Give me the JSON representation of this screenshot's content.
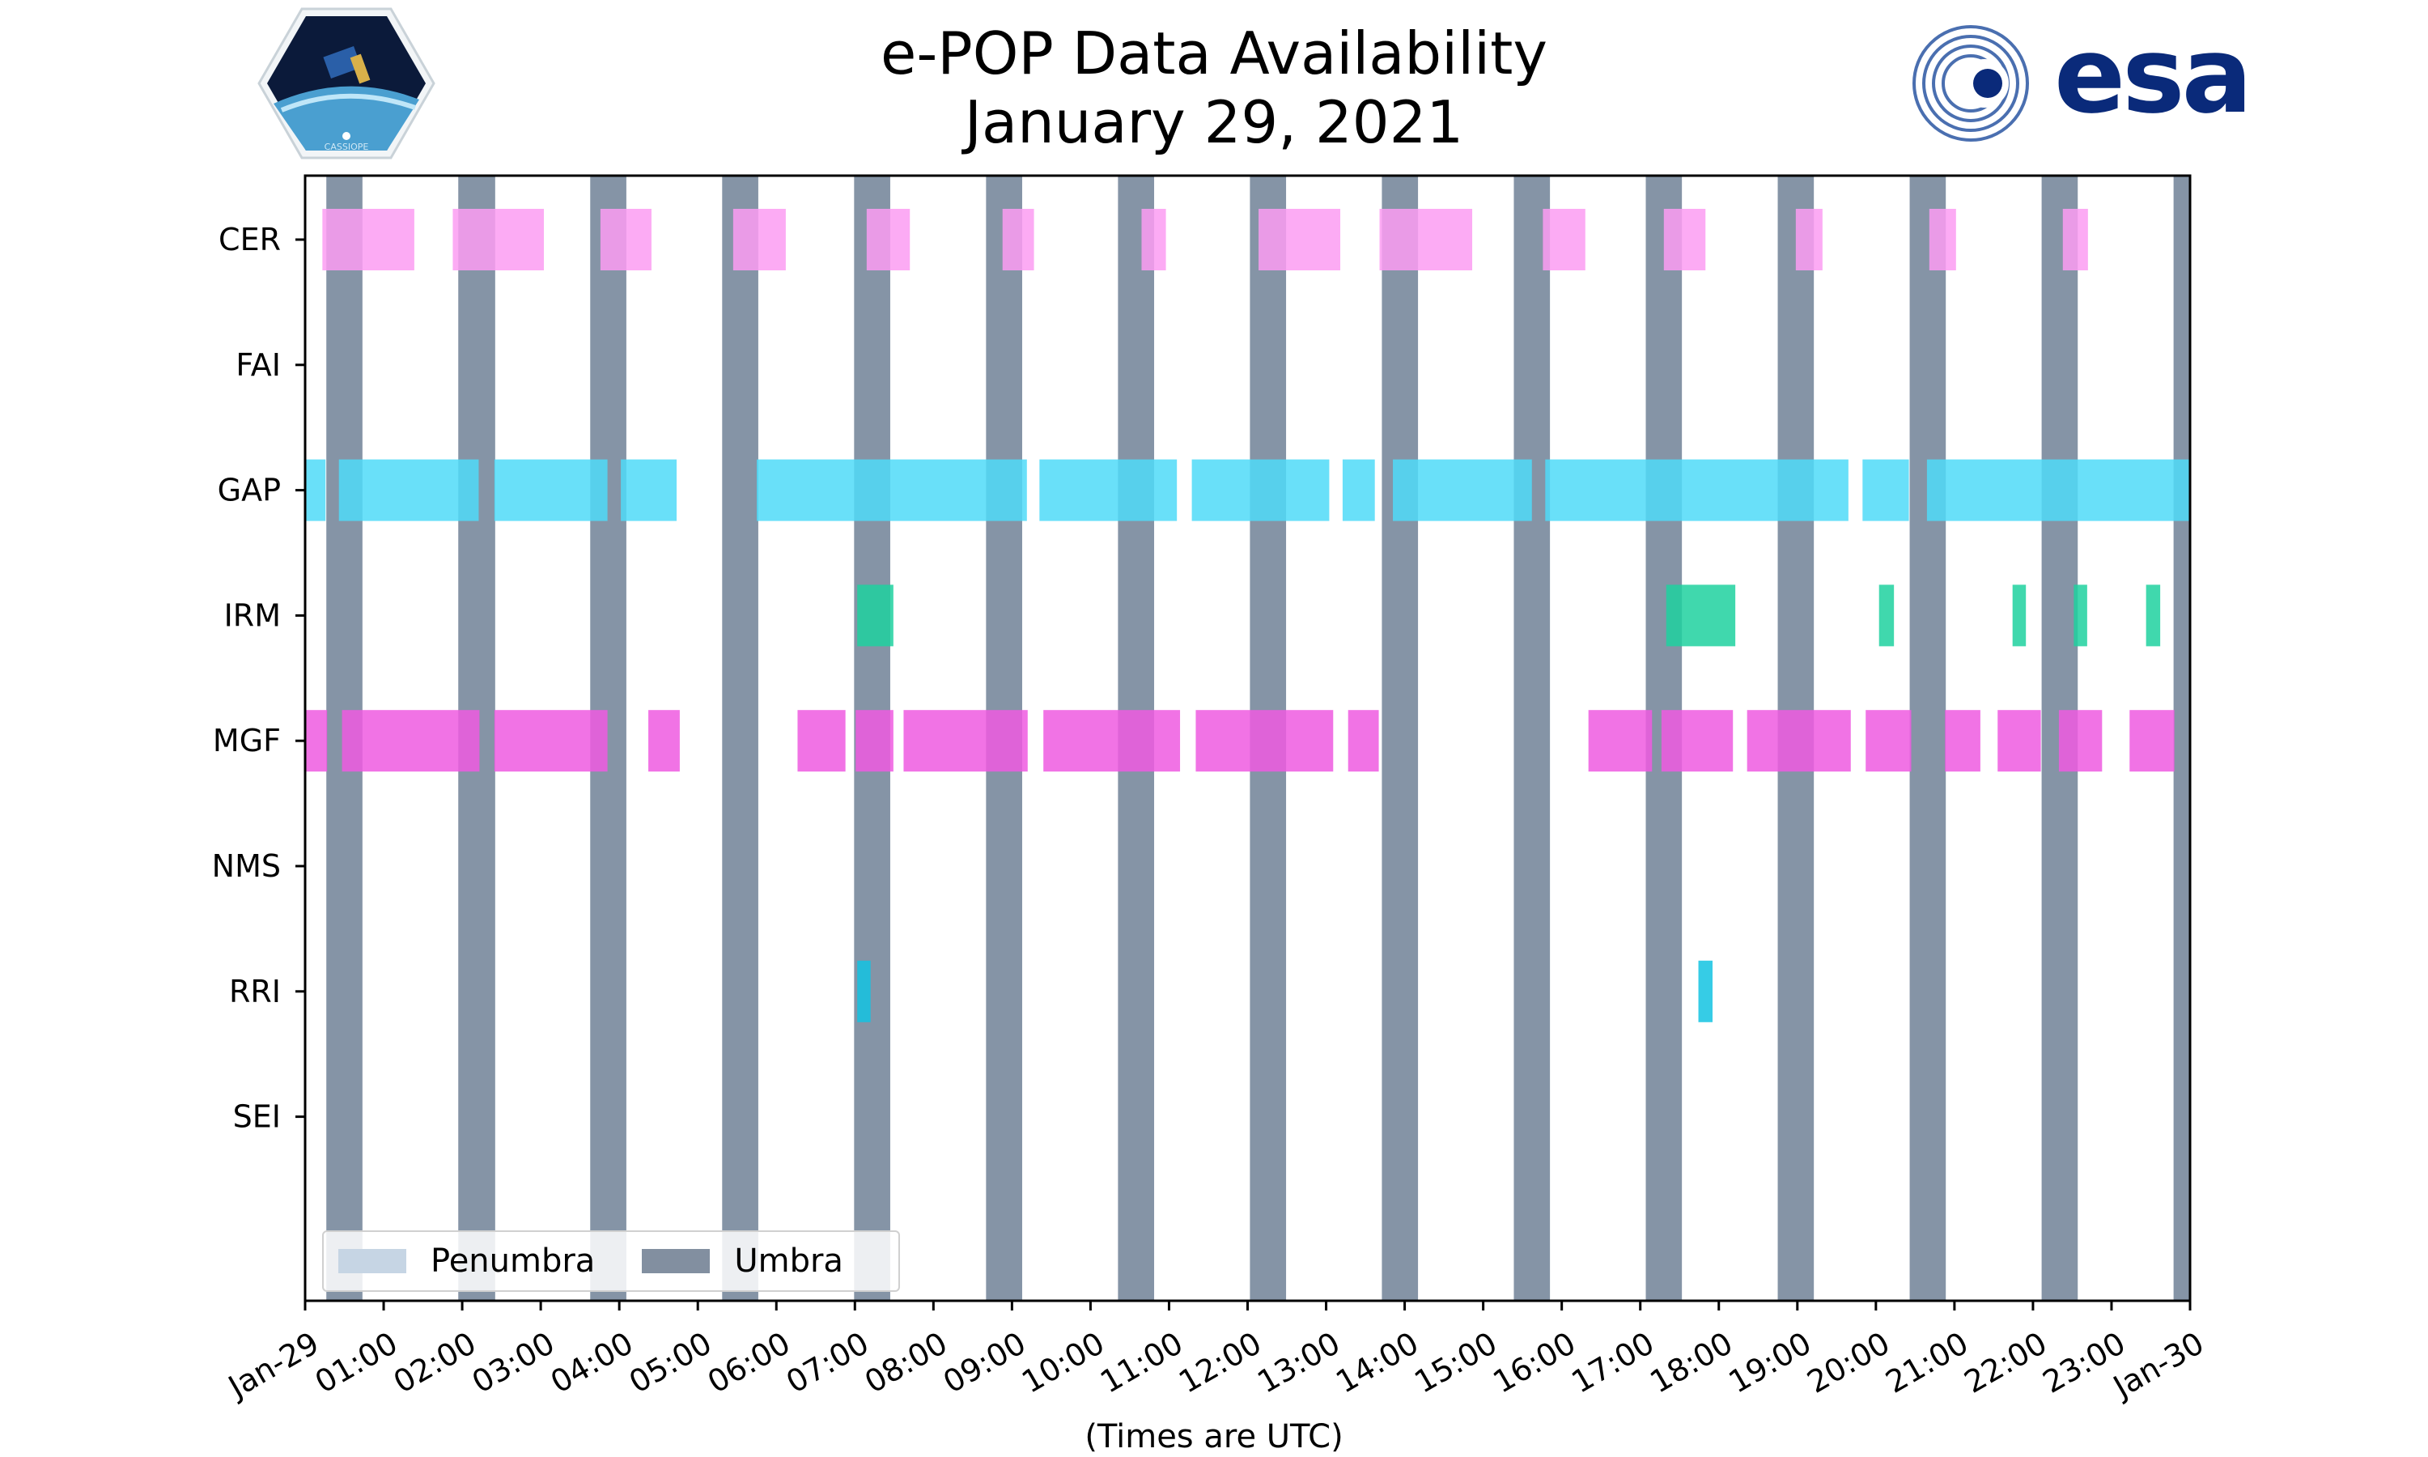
{
  "page": {
    "title_line1": "e-POP Data Availability",
    "title_line2": "January 29, 2021",
    "xlabel": "(Times are UTC)",
    "logos": {
      "left": "CASSIOPE",
      "right": "esa"
    }
  },
  "chart_data": {
    "type": "timeline",
    "title": "e-POP Data Availability January 29, 2021",
    "xlabel": "(Times are UTC)",
    "x_unit": "hours UTC",
    "xlim": [
      0,
      24
    ],
    "x_tick_labels": [
      "Jan-29",
      "01:00",
      "02:00",
      "03:00",
      "04:00",
      "05:00",
      "06:00",
      "07:00",
      "08:00",
      "09:00",
      "10:00",
      "11:00",
      "12:00",
      "13:00",
      "14:00",
      "15:00",
      "16:00",
      "17:00",
      "18:00",
      "19:00",
      "20:00",
      "21:00",
      "22:00",
      "23:00",
      "Jan-30"
    ],
    "categories": [
      "CER",
      "FAI",
      "GAP",
      "IRM",
      "MGF",
      "NMS",
      "RRI",
      "SEI"
    ],
    "colors": {
      "CER": "#fb9cf2",
      "FAI": "#cccccc",
      "GAP": "#4fdbf8",
      "IRM": "#1fd19f",
      "MGF": "#ee5ae0",
      "NMS": "#cccccc",
      "RRI": "#13c3e2",
      "SEI": "#cccccc",
      "umbra": "#6a7c92",
      "penumbra": "#c6d5e4"
    },
    "umbra": [
      [
        0.27,
        0.73
      ],
      [
        1.95,
        2.42
      ],
      [
        3.63,
        4.09
      ],
      [
        5.31,
        5.77
      ],
      [
        6.99,
        7.45
      ],
      [
        8.67,
        9.13
      ],
      [
        10.35,
        10.81
      ],
      [
        12.03,
        12.49
      ],
      [
        13.71,
        14.17
      ],
      [
        15.39,
        15.85
      ],
      [
        17.07,
        17.53
      ],
      [
        18.75,
        19.21
      ],
      [
        20.43,
        20.89
      ],
      [
        22.11,
        22.57
      ],
      [
        23.79,
        24.0
      ]
    ],
    "series": [
      {
        "name": "CER",
        "intervals": [
          [
            0.22,
            1.39
          ],
          [
            1.88,
            3.04
          ],
          [
            3.76,
            4.41
          ],
          [
            5.45,
            6.12
          ],
          [
            7.15,
            7.7
          ],
          [
            8.88,
            9.28
          ],
          [
            10.65,
            10.96
          ],
          [
            12.14,
            13.18
          ],
          [
            13.68,
            14.86
          ],
          [
            15.76,
            16.3
          ],
          [
            17.3,
            17.83
          ],
          [
            18.98,
            19.32
          ],
          [
            20.68,
            21.02
          ],
          [
            22.38,
            22.7
          ]
        ]
      },
      {
        "name": "FAI",
        "intervals": []
      },
      {
        "name": "GAP",
        "intervals": [
          [
            0.0,
            0.26
          ],
          [
            0.43,
            2.21
          ],
          [
            2.41,
            3.85
          ],
          [
            4.02,
            4.73
          ],
          [
            5.75,
            9.19
          ],
          [
            9.35,
            11.1
          ],
          [
            11.29,
            13.04
          ],
          [
            13.21,
            13.62
          ],
          [
            13.85,
            15.62
          ],
          [
            15.79,
            19.65
          ],
          [
            19.83,
            20.42
          ],
          [
            20.65,
            24.0
          ]
        ]
      },
      {
        "name": "IRM",
        "intervals": [
          [
            7.03,
            7.49
          ],
          [
            17.33,
            18.21
          ],
          [
            20.04,
            20.23
          ],
          [
            21.74,
            21.91
          ],
          [
            22.52,
            22.69
          ],
          [
            23.44,
            23.62
          ]
        ]
      },
      {
        "name": "MGF",
        "intervals": [
          [
            0.0,
            0.28
          ],
          [
            0.47,
            2.22
          ],
          [
            2.41,
            3.85
          ],
          [
            4.37,
            4.77
          ],
          [
            6.27,
            6.88
          ],
          [
            7.01,
            7.49
          ],
          [
            7.62,
            9.2
          ],
          [
            9.4,
            11.14
          ],
          [
            11.34,
            13.09
          ],
          [
            13.28,
            13.67
          ],
          [
            16.34,
            17.15
          ],
          [
            17.27,
            18.18
          ],
          [
            18.36,
            19.68
          ],
          [
            19.87,
            20.45
          ],
          [
            20.88,
            21.33
          ],
          [
            21.55,
            22.1
          ],
          [
            22.33,
            22.88
          ],
          [
            23.23,
            23.8
          ]
        ]
      },
      {
        "name": "NMS",
        "intervals": []
      },
      {
        "name": "RRI",
        "intervals": [
          [
            7.03,
            7.2
          ],
          [
            17.74,
            17.92
          ]
        ]
      },
      {
        "name": "SEI",
        "intervals": []
      }
    ],
    "legend": {
      "position": "lower-left",
      "entries": [
        "Penumbra",
        "Umbra"
      ]
    }
  }
}
